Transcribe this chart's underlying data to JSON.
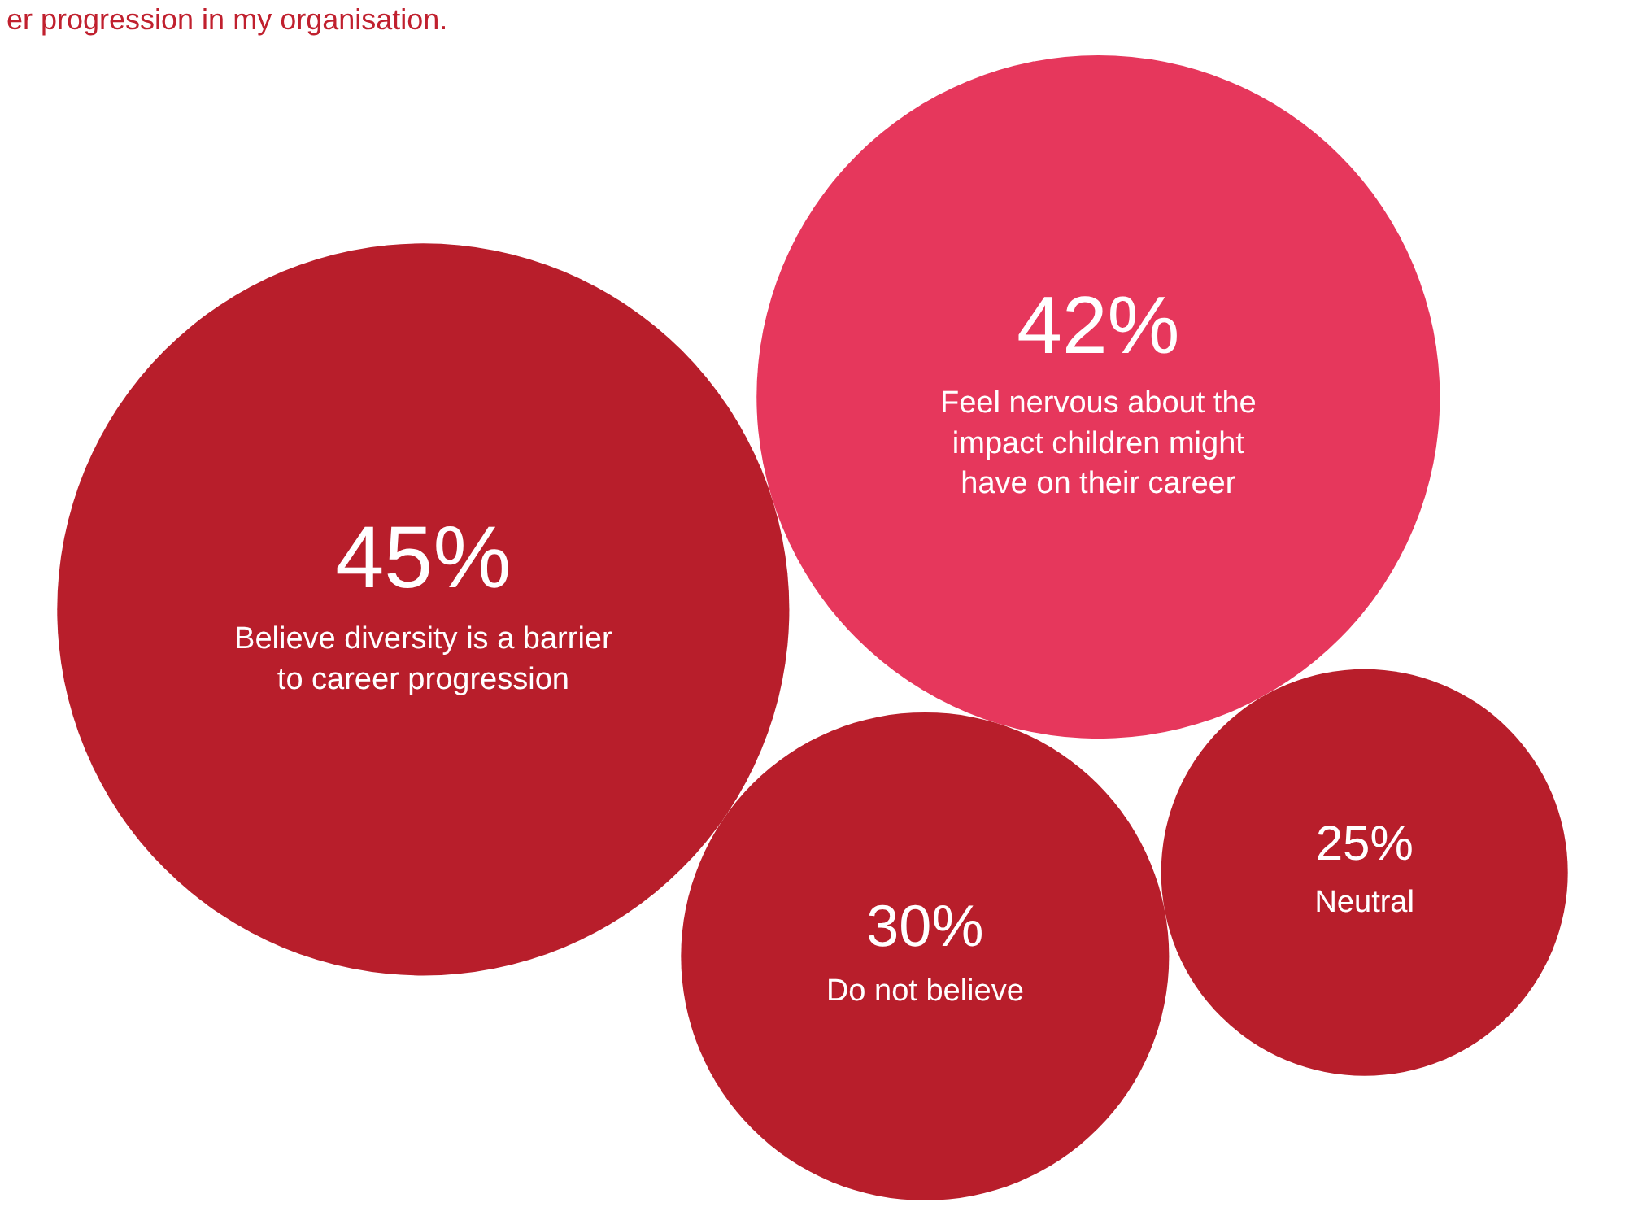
{
  "chart_data": {
    "type": "other",
    "title": "er progression in my organisation.",
    "categories": [
      "Believe diversity is a barrier to career progression",
      "Feel nervous about the impact children might have on their career",
      "Do not believe",
      "Neutral"
    ],
    "values": [
      45,
      42,
      30,
      25
    ],
    "value_labels": [
      "45%",
      "42%",
      "30%",
      "25%"
    ],
    "colors": [
      "#b81e2b",
      "#e6375c",
      "#b81e2b",
      "#b81e2b"
    ]
  }
}
